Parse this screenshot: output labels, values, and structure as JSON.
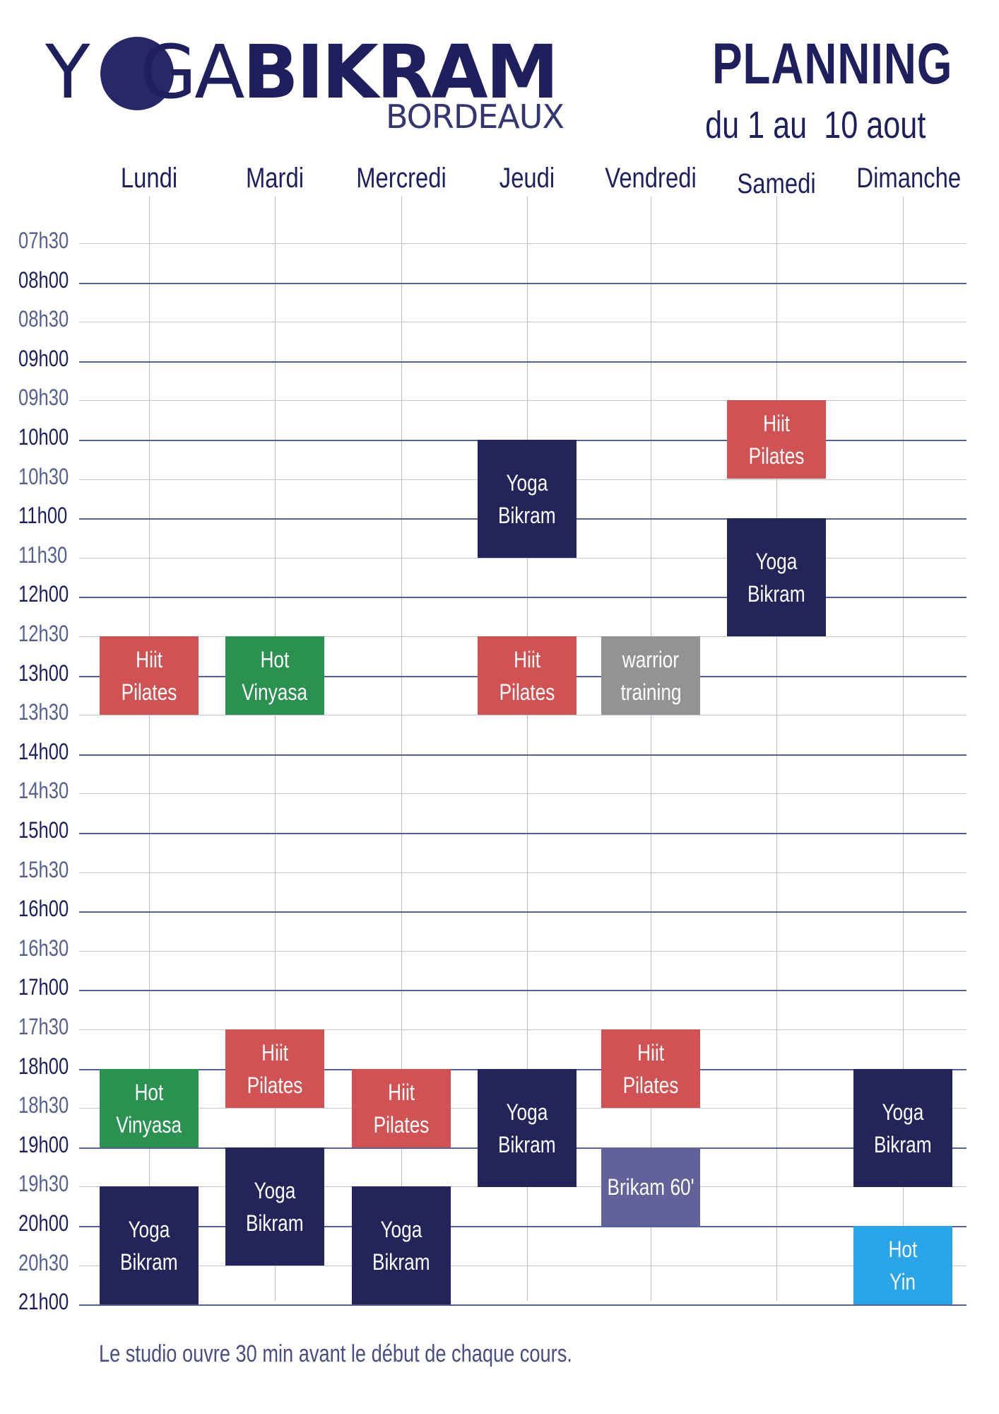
{
  "logo": {
    "word_yoga_1": "Y",
    "word_yoga_2": "GA",
    "word_bikram": "BIKRAM",
    "city": "BORDEAUX"
  },
  "header": {
    "title": "PLANNING",
    "dates": "du 1 au  10 aout"
  },
  "days": [
    "Lundi",
    "Mardi",
    "Mercredi",
    "Jeudi",
    "Vendredi",
    "Samedi",
    "Dimanche"
  ],
  "times": [
    "07h30",
    "08h00",
    "08h30",
    "09h00",
    "09h30",
    "10h00",
    "10h30",
    "11h00",
    "11h30",
    "12h00",
    "12h30",
    "13h00",
    "13h30",
    "14h00",
    "14h30",
    "15h00",
    "15h30",
    "16h00",
    "16h30",
    "17h00",
    "17h30",
    "18h00",
    "18h30",
    "19h00",
    "19h30",
    "20h00",
    "20h30",
    "21h00"
  ],
  "class_colors": {
    "hiit": "#d05252",
    "vinyasa": "#2a9150",
    "bikram": "#25245a",
    "warrior": "#939393",
    "bikram60": "#626199",
    "yin": "#29a4e6"
  },
  "classes": [
    {
      "day": "Lundi",
      "start": "12h30",
      "end": "13h30",
      "lines": [
        "Hiit",
        "Pilates"
      ],
      "color_key": "hiit"
    },
    {
      "day": "Mardi",
      "start": "12h30",
      "end": "13h30",
      "lines": [
        "Hot",
        "Vinyasa"
      ],
      "color_key": "vinyasa"
    },
    {
      "day": "Jeudi",
      "start": "10h00",
      "end": "11h30",
      "lines": [
        "Yoga",
        "Bikram"
      ],
      "color_key": "bikram"
    },
    {
      "day": "Jeudi",
      "start": "12h30",
      "end": "13h30",
      "lines": [
        "Hiit",
        "Pilates"
      ],
      "color_key": "hiit"
    },
    {
      "day": "Vendredi",
      "start": "12h30",
      "end": "13h30",
      "lines": [
        "warrior",
        "training"
      ],
      "color_key": "warrior"
    },
    {
      "day": "Samedi",
      "start": "09h30",
      "end": "10h30",
      "lines": [
        "Hiit",
        "Pilates"
      ],
      "color_key": "hiit"
    },
    {
      "day": "Samedi",
      "start": "11h00",
      "end": "12h30",
      "lines": [
        "Yoga",
        "Bikram"
      ],
      "color_key": "bikram"
    },
    {
      "day": "Lundi",
      "start": "18h00",
      "end": "19h00",
      "lines": [
        "Hot",
        "Vinyasa"
      ],
      "color_key": "vinyasa"
    },
    {
      "day": "Lundi",
      "start": "19h30",
      "end": "21h00",
      "lines": [
        "Yoga",
        "Bikram"
      ],
      "color_key": "bikram"
    },
    {
      "day": "Mardi",
      "start": "17h30",
      "end": "18h30",
      "lines": [
        "Hiit",
        "Pilates"
      ],
      "color_key": "hiit"
    },
    {
      "day": "Mardi",
      "start": "19h00",
      "end": "20h30",
      "lines": [
        "Yoga",
        "Bikram"
      ],
      "color_key": "bikram"
    },
    {
      "day": "Mercredi",
      "start": "18h00",
      "end": "19h00",
      "lines": [
        "Hiit",
        "Pilates"
      ],
      "color_key": "hiit"
    },
    {
      "day": "Mercredi",
      "start": "19h30",
      "end": "21h00",
      "lines": [
        "Yoga",
        "Bikram"
      ],
      "color_key": "bikram"
    },
    {
      "day": "Jeudi",
      "start": "18h00",
      "end": "19h30",
      "lines": [
        "Yoga",
        "Bikram"
      ],
      "color_key": "bikram"
    },
    {
      "day": "Vendredi",
      "start": "17h30",
      "end": "18h30",
      "lines": [
        "Hiit",
        "Pilates"
      ],
      "color_key": "hiit"
    },
    {
      "day": "Vendredi",
      "start": "19h00",
      "end": "20h00",
      "lines": [
        "Brikam 60'"
      ],
      "color_key": "bikram60"
    },
    {
      "day": "Dimanche",
      "start": "18h00",
      "end": "19h30",
      "lines": [
        "Yoga",
        "Bikram"
      ],
      "color_key": "bikram"
    },
    {
      "day": "Dimanche",
      "start": "20h00",
      "end": "21h00",
      "lines": [
        "Hot",
        "Yin"
      ],
      "color_key": "yin"
    }
  ],
  "footer": "Le studio ouvre 30 min avant le début de chaque cours."
}
